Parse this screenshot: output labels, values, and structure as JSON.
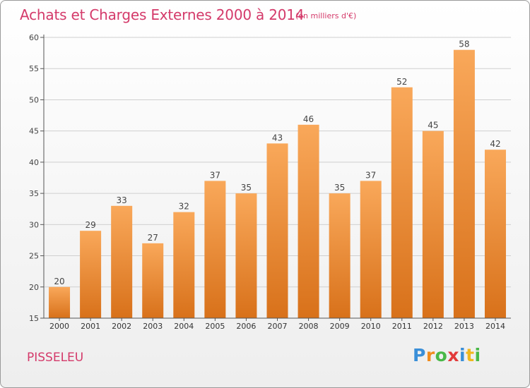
{
  "title": "Achats et Charges Externes 2000 à 2014",
  "subtitle": "(en milliers d'€)",
  "commune": "PISSELEU",
  "logo": {
    "letters": [
      "P",
      "r",
      "o",
      "x",
      "i",
      "t",
      "i"
    ],
    "colors": [
      "#3a8fd8",
      "#f08c1e",
      "#49b848",
      "#e23a3a",
      "#3a8fd8",
      "#f0b81e",
      "#49b848"
    ]
  },
  "colors": {
    "title": "#d43a6a",
    "bar_top": "#f9a85a",
    "bar_bottom": "#d8711a",
    "grid": "#cfcfcf"
  },
  "chart_data": {
    "type": "bar",
    "title": "Achats et Charges Externes 2000 à 2014",
    "categories": [
      "2000",
      "2001",
      "2002",
      "2003",
      "2004",
      "2005",
      "2006",
      "2007",
      "2008",
      "2009",
      "2010",
      "2011",
      "2012",
      "2013",
      "2014"
    ],
    "values": [
      20,
      29,
      33,
      27,
      32,
      37,
      35,
      43,
      46,
      35,
      37,
      52,
      45,
      58,
      42
    ],
    "ylim": [
      15,
      60
    ],
    "yticks": [
      15,
      20,
      25,
      30,
      35,
      40,
      45,
      50,
      55,
      60
    ],
    "xlabel": "",
    "ylabel": "",
    "grid": true,
    "data_labels": true
  }
}
